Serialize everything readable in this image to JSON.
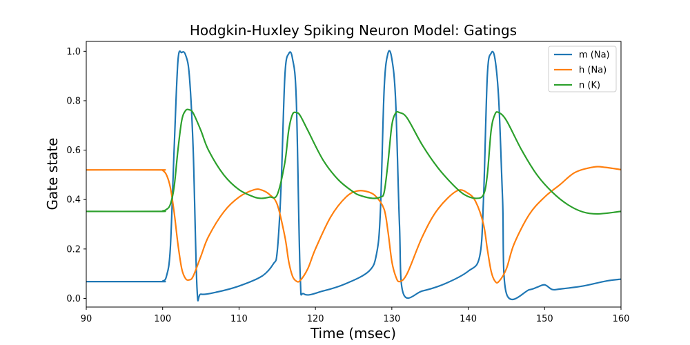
{
  "chart_data": {
    "type": "line",
    "title": "Hodgkin-Huxley Spiking Neuron Model: Gatings",
    "xlabel": "Time (msec)",
    "ylabel": "Gate state",
    "xlim": [
      90,
      160
    ],
    "ylim": [
      -0.035,
      1.04
    ],
    "xticks": [
      90,
      100,
      110,
      120,
      130,
      140,
      150,
      160
    ],
    "yticks": [
      0.0,
      0.2,
      0.4,
      0.6,
      0.8,
      1.0
    ],
    "xtick_labels": [
      "90",
      "100",
      "110",
      "120",
      "130",
      "140",
      "150",
      "160"
    ],
    "ytick_labels": [
      "0.0",
      "0.2",
      "0.4",
      "0.6",
      "0.8",
      "1.0"
    ],
    "grid": false,
    "legend_position": "top-right",
    "series": [
      {
        "name": "m (Na)",
        "color": "#1f77b4",
        "x": [
          90,
          99.5,
          100,
          100.5,
          101,
          101.5,
          102,
          102.5,
          103,
          103.5,
          104,
          104.5,
          105,
          107,
          110,
          113,
          114.5,
          115,
          115.5,
          116,
          116.5,
          117,
          117.5,
          118,
          118.5,
          121,
          124,
          127,
          128,
          128.5,
          129,
          129.5,
          130,
          130.5,
          131,
          131.5,
          134,
          137,
          140,
          141.5,
          142,
          142.5,
          143,
          143.5,
          144,
          144.5,
          145,
          148,
          149,
          150,
          151,
          152,
          155,
          158,
          160
        ],
        "y": [
          0.068,
          0.068,
          0.07,
          0.09,
          0.2,
          0.6,
          0.96,
          0.995,
          0.985,
          0.9,
          0.6,
          0.04,
          0.017,
          0.025,
          0.05,
          0.09,
          0.14,
          0.19,
          0.45,
          0.9,
          0.99,
          0.97,
          0.8,
          0.1,
          0.018,
          0.03,
          0.06,
          0.11,
          0.18,
          0.35,
          0.85,
          0.992,
          0.97,
          0.8,
          0.3,
          0.02,
          0.03,
          0.06,
          0.11,
          0.17,
          0.4,
          0.9,
          0.992,
          0.97,
          0.8,
          0.4,
          0.02,
          0.035,
          0.045,
          0.055,
          0.036,
          0.038,
          0.05,
          0.07,
          0.078
        ]
      },
      {
        "name": "h (Na)",
        "color": "#ff7f0e",
        "x": [
          90,
          99.5,
          100,
          100.5,
          101,
          101.5,
          102,
          102.5,
          103,
          103.5,
          104,
          105,
          106,
          108,
          110,
          112,
          113,
          114,
          115,
          116,
          116.5,
          117,
          117.5,
          118,
          119,
          120,
          122,
          124,
          125.5,
          127,
          128,
          129,
          129.5,
          130,
          130.5,
          131,
          132,
          134,
          136,
          138.5,
          140,
          141,
          142,
          142.5,
          143,
          143.5,
          144,
          145,
          146,
          148,
          150,
          152,
          154,
          156.5,
          158,
          160
        ],
        "y": [
          0.52,
          0.52,
          0.518,
          0.5,
          0.45,
          0.35,
          0.22,
          0.12,
          0.08,
          0.075,
          0.09,
          0.17,
          0.25,
          0.35,
          0.41,
          0.44,
          0.438,
          0.42,
          0.38,
          0.25,
          0.15,
          0.09,
          0.07,
          0.072,
          0.12,
          0.2,
          0.33,
          0.41,
          0.435,
          0.43,
          0.41,
          0.36,
          0.27,
          0.15,
          0.09,
          0.068,
          0.1,
          0.25,
          0.36,
          0.435,
          0.425,
          0.39,
          0.3,
          0.2,
          0.11,
          0.07,
          0.068,
          0.12,
          0.22,
          0.34,
          0.41,
          0.46,
          0.51,
          0.532,
          0.53,
          0.521
        ]
      },
      {
        "name": "n (K)",
        "color": "#2ca02c",
        "x": [
          90,
          99.5,
          100,
          100.5,
          101,
          101.5,
          102,
          102.5,
          103,
          103.5,
          104,
          105,
          106,
          108,
          110,
          112,
          113,
          114,
          115,
          116,
          116.5,
          117,
          117.5,
          118,
          119,
          121,
          123,
          125,
          126,
          127.5,
          128.5,
          129,
          129.5,
          130,
          130.5,
          131,
          132,
          134,
          136,
          138,
          139.5,
          141,
          142,
          142.5,
          143,
          143.5,
          144,
          145,
          147,
          149,
          151,
          153,
          155,
          157,
          160
        ],
        "y": [
          0.352,
          0.352,
          0.354,
          0.36,
          0.38,
          0.45,
          0.6,
          0.72,
          0.76,
          0.763,
          0.75,
          0.68,
          0.6,
          0.5,
          0.44,
          0.41,
          0.405,
          0.41,
          0.42,
          0.55,
          0.68,
          0.745,
          0.752,
          0.74,
          0.68,
          0.56,
          0.48,
          0.43,
          0.415,
          0.405,
          0.41,
          0.43,
          0.55,
          0.7,
          0.75,
          0.752,
          0.73,
          0.62,
          0.53,
          0.46,
          0.42,
          0.405,
          0.42,
          0.5,
          0.68,
          0.745,
          0.752,
          0.72,
          0.6,
          0.5,
          0.43,
          0.38,
          0.35,
          0.342,
          0.352
        ]
      }
    ]
  }
}
